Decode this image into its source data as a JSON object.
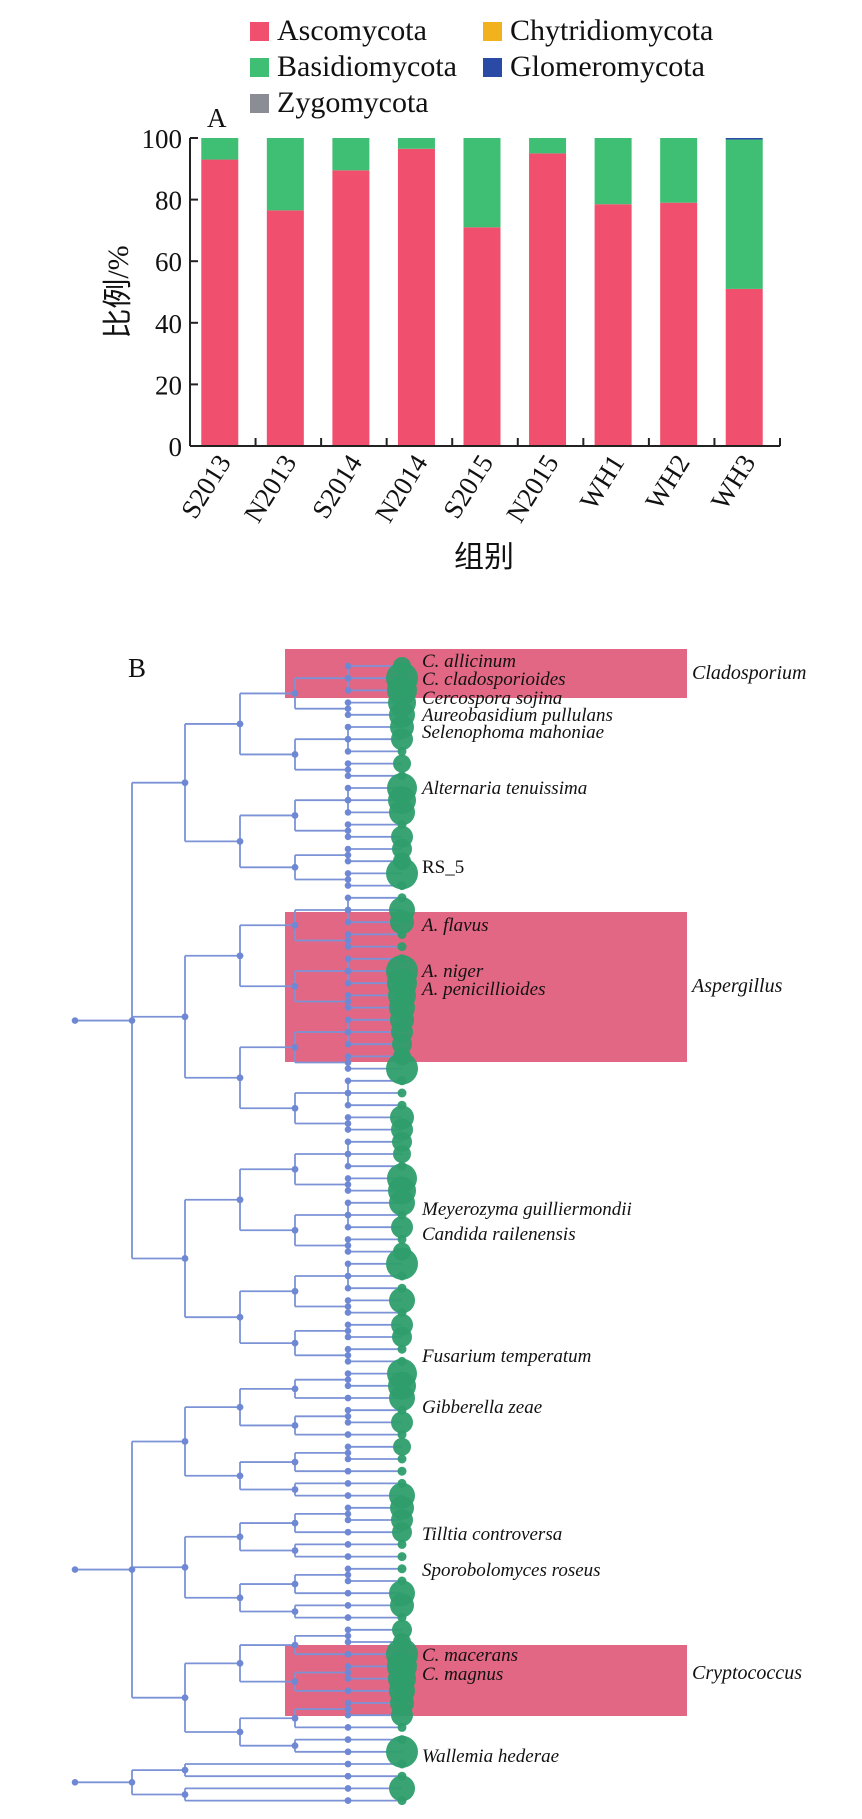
{
  "chart_data": [
    {
      "type": "bar",
      "stacked": true,
      "panel_label": "A",
      "categories": [
        "S2013",
        "N2013",
        "S2014",
        "N2014",
        "S2015",
        "N2015",
        "WH1",
        "WH2",
        "WH3"
      ],
      "series": [
        {
          "name": "Ascomycota",
          "color": "#f0506e",
          "values": [
            93,
            76.5,
            89.5,
            96.5,
            71,
            95,
            78.5,
            79,
            51
          ]
        },
        {
          "name": "Basidiomycota",
          "color": "#3fbf74",
          "values": [
            7,
            23.5,
            10.5,
            3.5,
            29,
            5,
            21.5,
            21,
            48.5
          ]
        },
        {
          "name": "Zygomycota",
          "color": "#8a8d93",
          "values": [
            0,
            0,
            0,
            0,
            0,
            0,
            0,
            0,
            0
          ]
        },
        {
          "name": "Chytridiomycota",
          "color": "#f2b21e",
          "values": [
            0,
            0,
            0,
            0,
            0,
            0,
            0,
            0,
            0
          ]
        },
        {
          "name": "Glomeromycota",
          "color": "#2b4aa6",
          "values": [
            0,
            0,
            0,
            0,
            0,
            0,
            0,
            0,
            0.5
          ]
        }
      ],
      "legend_order": [
        "Ascomycota",
        "Chytridiomycota",
        "Basidiomycota",
        "Glomeromycota",
        "Zygomycota"
      ],
      "xlabel": "组别",
      "ylabel": "比例/%",
      "ylim": [
        0,
        100
      ],
      "yticks": [
        "0",
        "20",
        "40",
        "60",
        "80",
        "100"
      ],
      "legend_position": "top"
    },
    {
      "type": "tree",
      "panel_label": "B",
      "labels": [
        {
          "text": "C. allicinum",
          "italic": true
        },
        {
          "text": "C. cladosporioides",
          "italic": true
        },
        {
          "text": "Cercospora sojina",
          "italic": true
        },
        {
          "text": "Aureobasidium pullulans",
          "italic": true
        },
        {
          "text": "Selenophoma mahoniae",
          "italic": true
        },
        {
          "text": "Alternaria tenuissima",
          "italic": true
        },
        {
          "text": "RS_5",
          "italic": false
        },
        {
          "text": "A. flavus",
          "italic": true
        },
        {
          "text": "A. niger",
          "italic": true
        },
        {
          "text": "A. penicillioides",
          "italic": true
        },
        {
          "text": "Meyerozyma guilliermondii",
          "italic": true
        },
        {
          "text": "Candida railenensis",
          "italic": true
        },
        {
          "text": "Fusarium temperatum",
          "italic": true
        },
        {
          "text": "Gibberella zeae",
          "italic": true
        },
        {
          "text": "Tilltia controversa",
          "italic": true
        },
        {
          "text": "Sporobolomyces roseus",
          "italic": true
        },
        {
          "text": "C. macerans",
          "italic": true
        },
        {
          "text": "C. magnus",
          "italic": true
        },
        {
          "text": "Wallemia hederae",
          "italic": true
        }
      ],
      "highlighted_genera": [
        "Cladosporium",
        "Aspergillus",
        "Cryptococcus"
      ],
      "colors": {
        "branch": "#7b93d6",
        "node": "#6f88d4",
        "leaf": "#2e9e6c",
        "highlight": "#e05a7a"
      }
    }
  ]
}
